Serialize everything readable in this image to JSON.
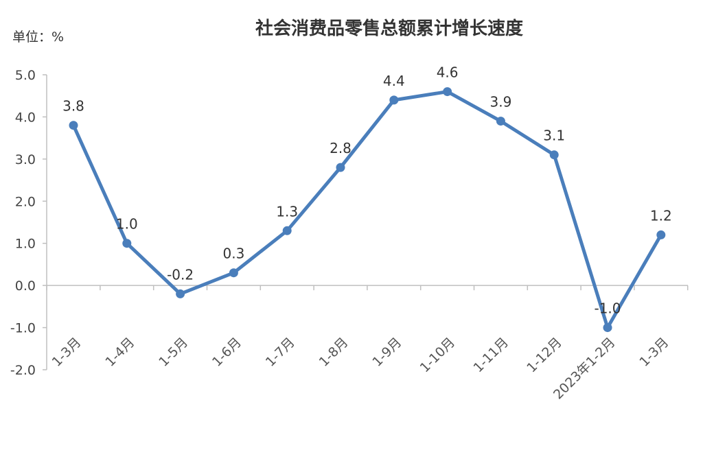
{
  "chart_data": {
    "type": "line",
    "title": "社会消费品零售总额累计增长速度",
    "unit_label": "单位：%",
    "categories": [
      "1-3月",
      "1-4月",
      "1-5月",
      "1-6月",
      "1-7月",
      "1-8月",
      "1-9月",
      "1-10月",
      "1-11月",
      "1-12月",
      "2023年1-2月",
      "1-3月"
    ],
    "values": [
      3.8,
      1.0,
      -0.2,
      0.3,
      1.3,
      2.8,
      4.4,
      4.6,
      3.9,
      3.1,
      -1.0,
      1.2
    ],
    "value_labels": [
      "3.8",
      "1.0",
      "-0.2",
      "0.3",
      "1.3",
      "2.8",
      "4.4",
      "4.6",
      "3.9",
      "3.1",
      "-1.0",
      "1.2"
    ],
    "ylim": [
      -2.0,
      5.0
    ],
    "yticks": [
      "5.0",
      "4.0",
      "3.0",
      "2.0",
      "1.0",
      "0.0",
      "-1.0",
      "-2.0"
    ],
    "grid": false,
    "legend": "none",
    "colors": {
      "line": "#4a7ebb",
      "axis": "#bfbfbf"
    }
  }
}
